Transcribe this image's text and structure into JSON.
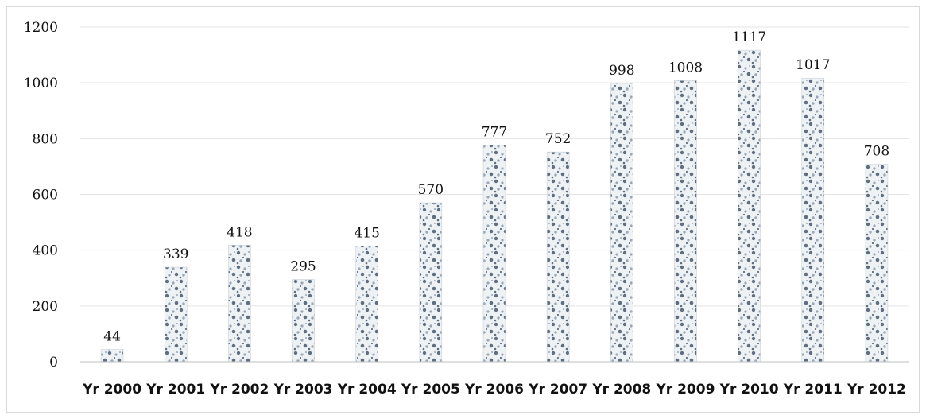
{
  "chart_data": {
    "type": "bar",
    "title": "",
    "xlabel": "",
    "ylabel": "",
    "categories": [
      "Yr 2000",
      "Yr 2001",
      "Yr 2002",
      "Yr 2003",
      "Yr 2004",
      "Yr 2005",
      "Yr 2006",
      "Yr 2007",
      "Yr 2008",
      "Yr 2009",
      "Yr 2010",
      "Yr 2011",
      "Yr 2012"
    ],
    "values": [
      44,
      339,
      418,
      295,
      415,
      570,
      777,
      752,
      998,
      1008,
      1117,
      1017,
      708
    ],
    "data_labels": [
      "44",
      "339",
      "418",
      "295",
      "415",
      "570",
      "777",
      "752",
      "998",
      "1008",
      "1117",
      "1017",
      "708"
    ],
    "ylim": [
      0,
      1200
    ],
    "yticks": [
      0,
      200,
      400,
      600,
      800,
      1000,
      1200
    ],
    "ytick_labels": [
      "0",
      "200",
      "400",
      "600",
      "800",
      "1000",
      "1200"
    ],
    "grid": true,
    "legend": "none",
    "colors": {
      "bar_fill": "#eef2f5",
      "bar_speckle_dark": "#5f6f80",
      "bar_speckle_mid": "#9aa8b6",
      "grid": "#e3e3e3",
      "axis": "#bfbfbf",
      "text": "#111111"
    }
  }
}
